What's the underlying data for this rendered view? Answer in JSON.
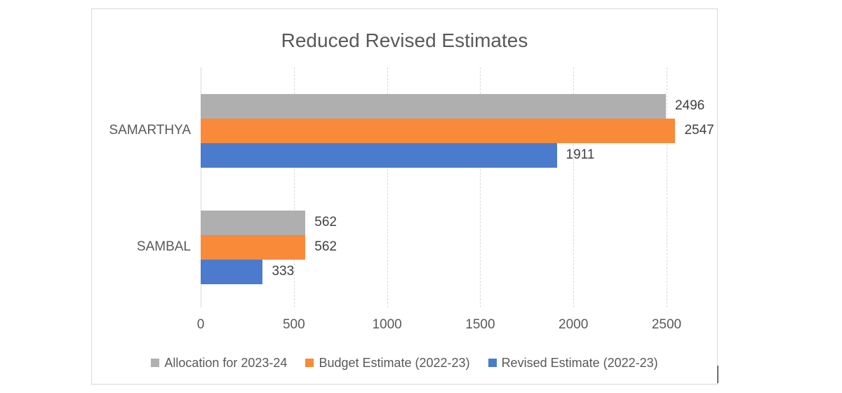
{
  "chart_data": {
    "type": "bar",
    "orientation": "horizontal",
    "title": "Reduced Revised Estimates",
    "categories": [
      "SAMARTHYA",
      "SAMBAL"
    ],
    "series": [
      {
        "name": "Allocation for 2023-24",
        "color": "#AFAFAF",
        "values": [
          2496,
          562
        ]
      },
      {
        "name": "Budget Estimate (2022-23)",
        "color": "#F98A39",
        "values": [
          2547,
          562
        ]
      },
      {
        "name": "Revised Estimate (2022-23)",
        "color": "#4A7BCC",
        "values": [
          1911,
          333
        ]
      }
    ],
    "data_labels": [
      [
        "2496",
        "2547",
        "1911"
      ],
      [
        "562",
        "562",
        "333"
      ]
    ],
    "x_axis": {
      "min": 0,
      "max": 2500,
      "ticks": [
        "0",
        "500",
        "1000",
        "1500",
        "2000",
        "2500"
      ],
      "tick_values": [
        0,
        500,
        1000,
        1500,
        2000,
        2500
      ],
      "grid": "vertical-dashed"
    },
    "legend_position": "bottom",
    "style": {
      "title_color": "#595959",
      "axis_label_color": "#595959",
      "value_label_color": "#404040",
      "grid_color": "#D9D9D9",
      "frame_border_color": "#D9D9D9",
      "background_color": "#FFFFFF"
    }
  }
}
